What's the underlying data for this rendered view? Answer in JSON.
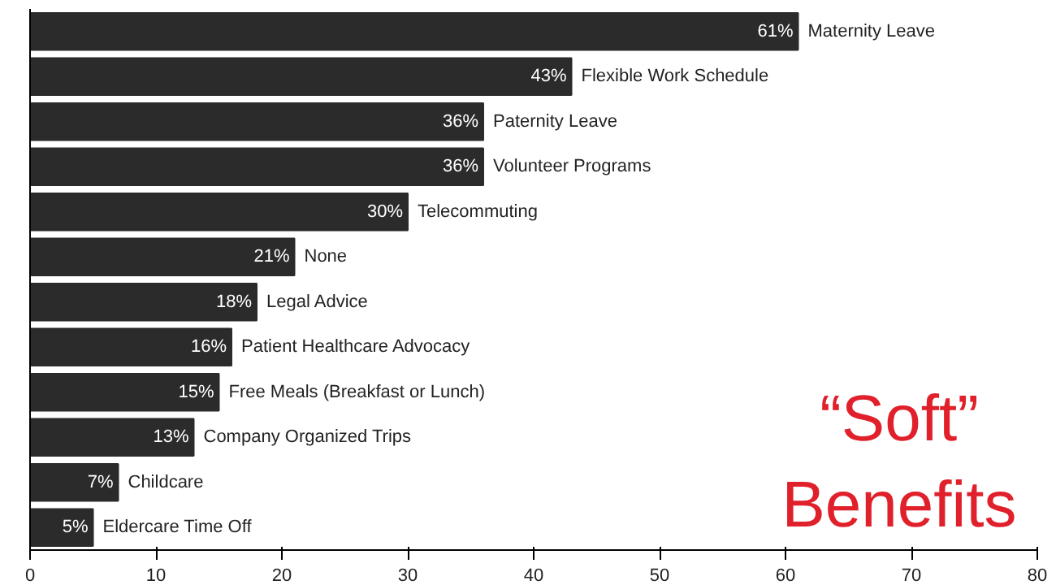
{
  "chart_data": {
    "type": "bar",
    "orientation": "horizontal",
    "title": "“Soft”\nBenefits",
    "categories": [
      "Maternity Leave",
      "Flexible Work Schedule",
      "Paternity Leave",
      "Volunteer Programs",
      "Telecommuting",
      "None",
      "Legal Advice",
      "Patient Healthcare Advocacy",
      "Free Meals (Breakfast or Lunch)",
      "Company Organized Trips",
      "Childcare",
      "Eldercare Time Off"
    ],
    "values": [
      61,
      43,
      36,
      36,
      30,
      21,
      18,
      16,
      15,
      13,
      7,
      5
    ],
    "value_labels": [
      "61%",
      "43%",
      "36%",
      "36%",
      "30%",
      "21%",
      "18%",
      "16%",
      "15%",
      "13%",
      "7%",
      "5%"
    ],
    "color": "#2b2b2b",
    "xlim": [
      0,
      80
    ],
    "xticks": [
      0,
      10,
      20,
      30,
      40,
      50,
      60,
      70,
      80
    ],
    "tick_labels": "x",
    "grid": false
  }
}
